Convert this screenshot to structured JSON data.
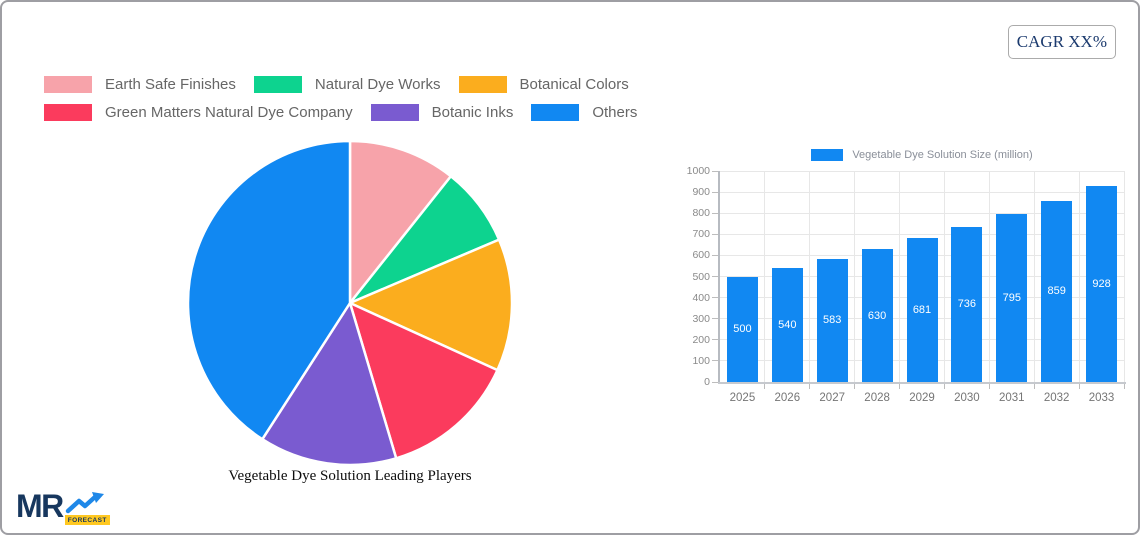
{
  "cagr_badge": {
    "label": "CAGR XX%"
  },
  "logo": {
    "mr": "MR",
    "forecast": "FORECAST"
  },
  "colors": {
    "card_border": "#9e9ea3",
    "legend_text": "#666666",
    "axis_text": "#8a8a8a",
    "bar_blue": "#1188f2"
  },
  "chart_data": [
    {
      "type": "pie",
      "title": "Vegetable Dye Solution Leading Players",
      "labels": [
        "Earth Safe Finishes",
        "Natural Dye Works",
        "Botanical Colors",
        "Green Matters Natural Dye Company",
        "Botanic Inks",
        "Others"
      ],
      "values": [
        10.7,
        7.9,
        13.2,
        13.6,
        13.7,
        40.9
      ],
      "colors": [
        "#f7a3aa",
        "#0dd38f",
        "#fbad1e",
        "#fb3b5d",
        "#7a5bd0",
        "#1188f2"
      ],
      "legend_position": "top-left",
      "legend_rows": [
        [
          0,
          1,
          2
        ],
        [
          3,
          4,
          5
        ]
      ],
      "slice_separator_color": "#ffffff",
      "start_angle_deg": 0
    },
    {
      "type": "bar",
      "series_label": "Vegetable Dye Solution Size (million)",
      "categories": [
        "2025",
        "2026",
        "2027",
        "2028",
        "2029",
        "2030",
        "2031",
        "2032",
        "2033"
      ],
      "values": [
        500,
        540,
        583,
        630,
        681,
        736,
        795,
        859,
        928
      ],
      "bar_color": "#1188f2",
      "value_label_color": "#ffffff",
      "ylim": [
        0,
        1000
      ],
      "ytick_step": 100,
      "grid": true,
      "legend_position": "top-center"
    }
  ]
}
